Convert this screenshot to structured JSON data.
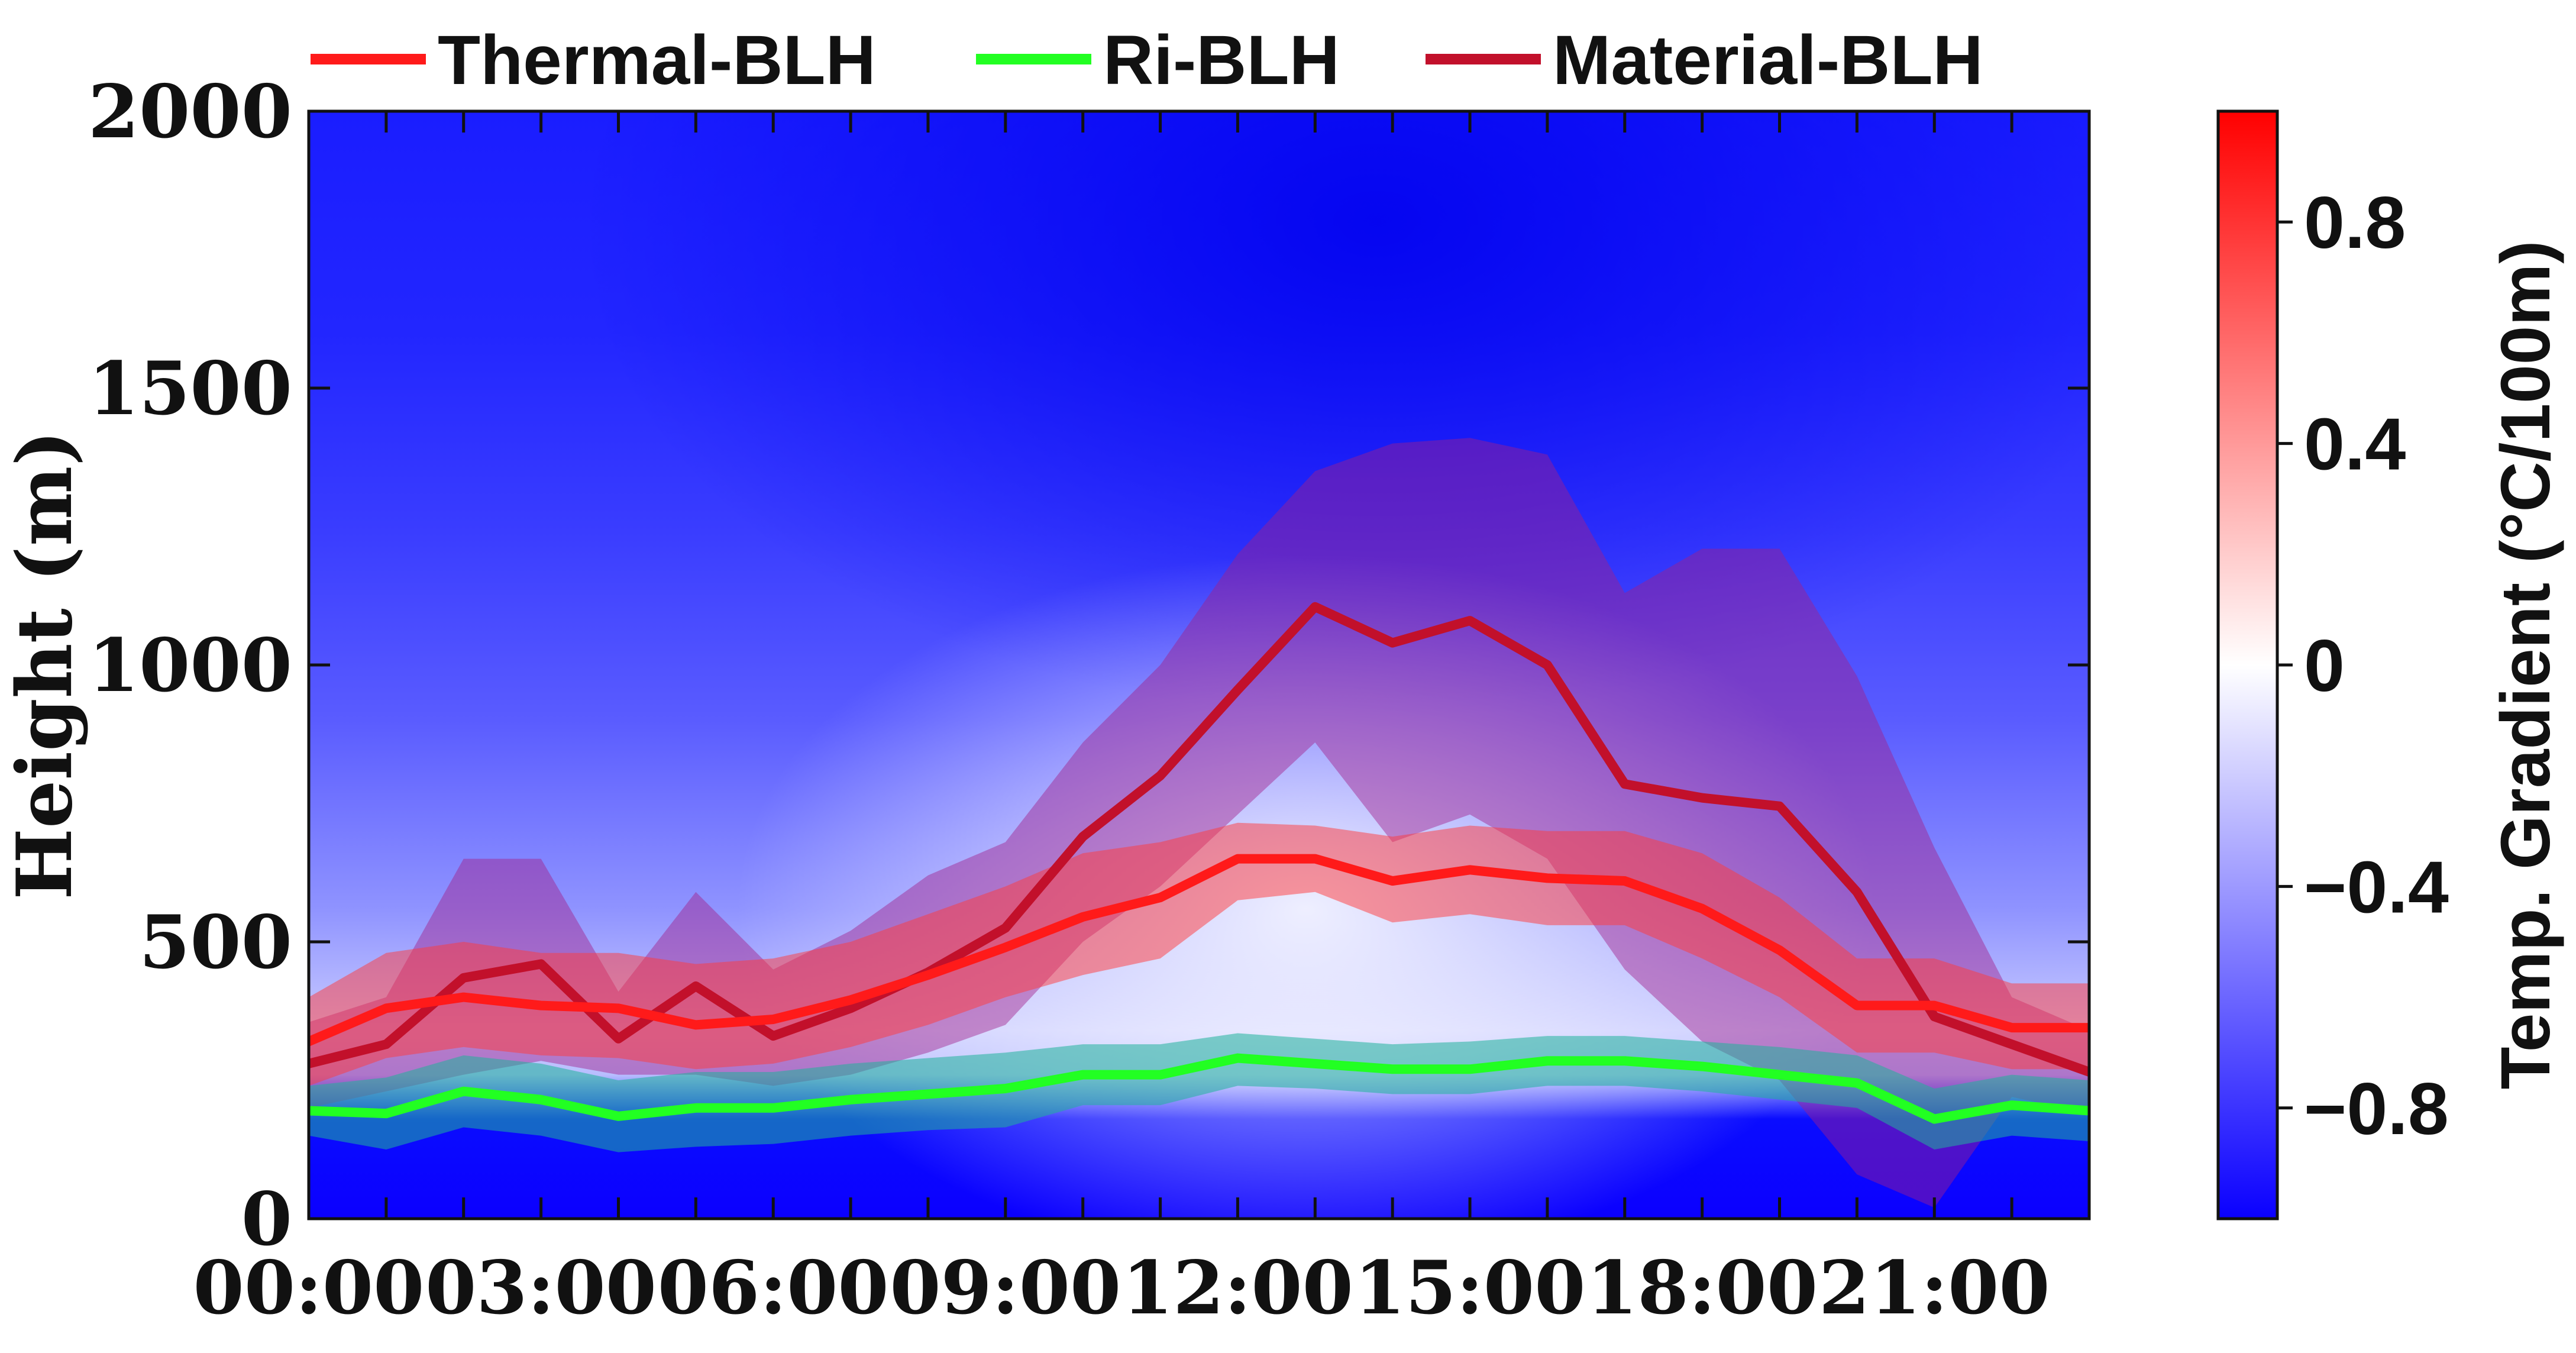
{
  "chart_data": {
    "type": "line",
    "title": "",
    "xlabel": "",
    "ylabel": "Height (m)",
    "xlim": [
      0,
      23
    ],
    "ylim": [
      0,
      2000
    ],
    "x": [
      0,
      1,
      2,
      3,
      4,
      5,
      6,
      7,
      8,
      9,
      10,
      11,
      12,
      13,
      14,
      15,
      16,
      17,
      18,
      19,
      20,
      21,
      22,
      23
    ],
    "x_tick_labels": [
      "00:00",
      "03:00",
      "06:00",
      "09:00",
      "12:00",
      "15:00",
      "18:00",
      "21:00"
    ],
    "x_tick_values": [
      0,
      3,
      6,
      9,
      12,
      15,
      18,
      21
    ],
    "y_ticks": [
      0,
      500,
      1000,
      1500,
      2000
    ],
    "y_tick_labels": [
      "0",
      "500",
      "1000",
      "1500",
      "2000"
    ],
    "legend": {
      "position": "top"
    },
    "series": [
      {
        "name": "Thermal-BLH",
        "color": "#ff1a1a",
        "values": [
          320,
          380,
          400,
          385,
          380,
          350,
          360,
          395,
          440,
          490,
          545,
          580,
          650,
          650,
          610,
          630,
          615,
          610,
          560,
          485,
          385,
          385,
          345,
          345
        ],
        "band_lower": [
          240,
          290,
          310,
          295,
          290,
          270,
          280,
          310,
          350,
          400,
          440,
          470,
          575,
          590,
          535,
          550,
          530,
          530,
          470,
          400,
          300,
          300,
          270,
          270
        ],
        "band_upper": [
          400,
          480,
          500,
          480,
          480,
          460,
          470,
          500,
          550,
          600,
          660,
          680,
          715,
          710,
          690,
          710,
          700,
          700,
          660,
          580,
          470,
          470,
          425,
          425
        ]
      },
      {
        "name": "Ri-BLH",
        "color": "#22ff22",
        "values": [
          195,
          190,
          230,
          215,
          185,
          200,
          200,
          215,
          225,
          235,
          260,
          260,
          290,
          280,
          270,
          270,
          285,
          285,
          275,
          260,
          245,
          180,
          205,
          195
        ],
        "band_lower": [
          150,
          125,
          165,
          150,
          120,
          130,
          135,
          150,
          160,
          165,
          205,
          205,
          240,
          235,
          225,
          225,
          240,
          240,
          230,
          215,
          200,
          125,
          150,
          140
        ],
        "band_upper": [
          240,
          255,
          295,
          280,
          250,
          265,
          265,
          280,
          290,
          300,
          315,
          315,
          335,
          325,
          315,
          320,
          330,
          330,
          320,
          310,
          295,
          235,
          260,
          250
        ]
      },
      {
        "name": "Material-BLH",
        "color": "#c2102b",
        "values": [
          280,
          315,
          435,
          460,
          325,
          420,
          330,
          380,
          445,
          525,
          690,
          800,
          955,
          1105,
          1040,
          1080,
          1000,
          785,
          760,
          745,
          590,
          365,
          315,
          265
        ],
        "band_lower": [
          200,
          230,
          260,
          285,
          260,
          260,
          240,
          260,
          300,
          350,
          500,
          600,
          730,
          860,
          680,
          730,
          650,
          450,
          320,
          250,
          80,
          20,
          220,
          190
        ],
        "band_upper": [
          355,
          400,
          650,
          650,
          410,
          590,
          450,
          520,
          620,
          680,
          860,
          1000,
          1200,
          1350,
          1400,
          1410,
          1380,
          1130,
          1210,
          1210,
          980,
          670,
          400,
          340
        ]
      }
    ],
    "heatmap": {
      "variable": "Temp. Gradient",
      "colorbar_label": "Temp. Gradient (°C/100m)",
      "range": [
        -1.0,
        1.0
      ],
      "colorbar_ticks": [
        -0.8,
        -0.4,
        0,
        0.4,
        0.8
      ],
      "colorbar_tick_labels": [
        "−0.8",
        "−0.4",
        "0",
        "0.4",
        "0.8"
      ],
      "colormap": {
        "low": "#0a00ff",
        "mid": "#ffffff",
        "high": "#ff0000"
      }
    }
  }
}
